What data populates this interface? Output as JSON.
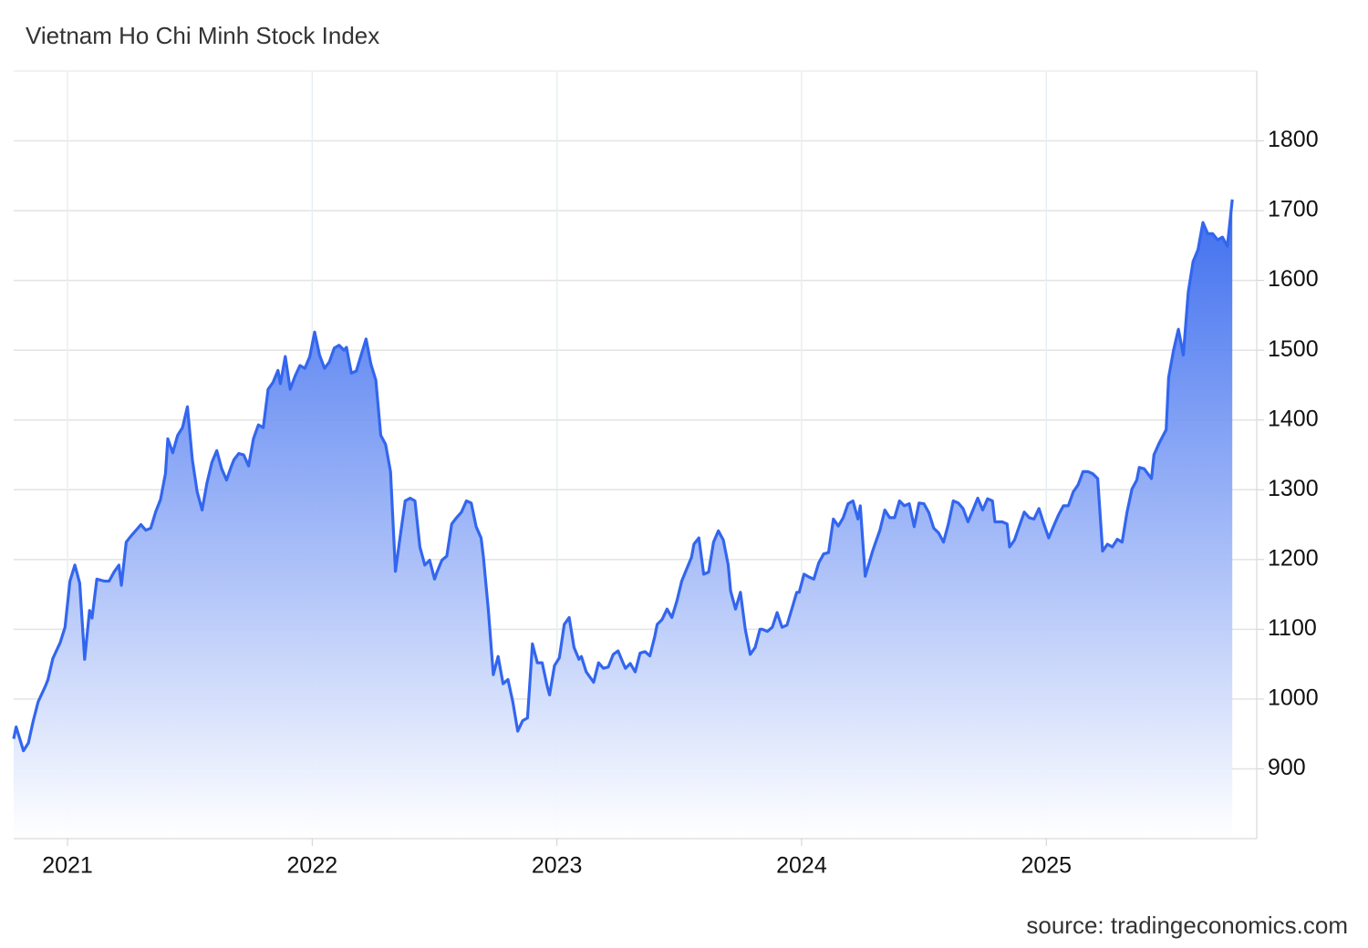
{
  "chart_data": {
    "type": "area",
    "title": "Vietnam Ho Chi Minh Stock Index",
    "source": "source: tradingeconomics.com",
    "color": "#3366ee",
    "grid": true,
    "xlim": [
      2020.78,
      2025.86
    ],
    "xticks": [
      2021,
      2022,
      2023,
      2024,
      2025
    ],
    "ylim": [
      800,
      1900
    ],
    "yticks": [
      900,
      1000,
      1100,
      1200,
      1300,
      1400,
      1500,
      1600,
      1700,
      1800
    ],
    "x": [
      2020.78,
      2020.79,
      2020.82,
      2020.84,
      2020.86,
      2020.88,
      2020.91,
      2020.92,
      2020.94,
      2020.97,
      2020.99,
      2021.01,
      2021.03,
      2021.05,
      2021.07,
      2021.09,
      2021.1,
      2021.12,
      2021.15,
      2021.17,
      2021.19,
      2021.21,
      2021.22,
      2021.24,
      2021.26,
      2021.28,
      2021.3,
      2021.32,
      2021.34,
      2021.36,
      2021.38,
      2021.4,
      2021.41,
      2021.43,
      2021.45,
      2021.47,
      2021.49,
      2021.51,
      2021.53,
      2021.55,
      2021.57,
      2021.59,
      2021.61,
      2021.63,
      2021.65,
      2021.67,
      2021.68,
      2021.7,
      2021.72,
      2021.74,
      2021.76,
      2021.78,
      2021.8,
      2021.82,
      2021.84,
      2021.86,
      2021.87,
      2021.89,
      2021.91,
      2021.93,
      2021.95,
      2021.97,
      2021.99,
      2022.01,
      2022.03,
      2022.05,
      2022.07,
      2022.09,
      2022.11,
      2022.13,
      2022.14,
      2022.16,
      2022.18,
      2022.2,
      2022.22,
      2022.24,
      2022.26,
      2022.28,
      2022.3,
      2022.32,
      2022.34,
      2022.36,
      2022.38,
      2022.4,
      2022.42,
      2022.44,
      2022.46,
      2022.48,
      2022.5,
      2022.51,
      2022.53,
      2022.55,
      2022.57,
      2022.59,
      2022.61,
      2022.63,
      2022.65,
      2022.67,
      2022.69,
      2022.7,
      2022.72,
      2022.74,
      2022.76,
      2022.78,
      2022.8,
      2022.82,
      2022.84,
      2022.86,
      2022.88,
      2022.9,
      2022.92,
      2022.94,
      2022.96,
      2022.97,
      2022.99,
      2023.01,
      2023.03,
      2023.05,
      2023.07,
      2023.09,
      2023.1,
      2023.12,
      2023.15,
      2023.17,
      2023.19,
      2023.21,
      2023.23,
      2023.25,
      2023.27,
      2023.28,
      2023.3,
      2023.32,
      2023.34,
      2023.36,
      2023.38,
      2023.4,
      2023.41,
      2023.43,
      2023.45,
      2023.47,
      2023.49,
      2023.51,
      2023.53,
      2023.55,
      2023.56,
      2023.58,
      2023.6,
      2023.62,
      2023.64,
      2023.66,
      2023.68,
      2023.7,
      2023.71,
      2023.73,
      2023.75,
      2023.77,
      2023.79,
      2023.81,
      2023.83,
      2023.84,
      2023.86,
      2023.88,
      2023.9,
      2023.92,
      2023.94,
      2023.96,
      2023.98,
      2023.99,
      2024.01,
      2024.03,
      2024.05,
      2024.07,
      2024.09,
      2024.11,
      2024.13,
      2024.15,
      2024.17,
      2024.19,
      2024.21,
      2024.23,
      2024.24,
      2024.26,
      2024.29,
      2024.3,
      2024.32,
      2024.34,
      2024.36,
      2024.38,
      2024.4,
      2024.42,
      2024.44,
      2024.46,
      2024.48,
      2024.5,
      2024.52,
      2024.54,
      2024.56,
      2024.58,
      2024.6,
      2024.62,
      2024.64,
      2024.66,
      2024.68,
      2024.7,
      2024.72,
      2024.74,
      2024.76,
      2024.78,
      2024.79,
      2024.82,
      2024.84,
      2024.85,
      2024.87,
      2024.89,
      2024.91,
      2024.93,
      2024.95,
      2024.97,
      2024.99,
      2025.01,
      2025.03,
      2025.05,
      2025.07,
      2025.09,
      2025.11,
      2025.13,
      2025.15,
      2025.17,
      2025.19,
      2025.21,
      2025.23,
      2025.25,
      2025.27,
      2025.29,
      2025.31,
      2025.33,
      2025.35,
      2025.37,
      2025.38,
      2025.4,
      2025.43,
      2025.44,
      2025.46,
      2025.49,
      2025.5,
      2025.52,
      2025.54,
      2025.56,
      2025.58,
      2025.6,
      2025.62,
      2025.64,
      2025.66,
      2025.68,
      2025.7,
      2025.72,
      2025.74,
      2025.76
    ],
    "values": [
      943,
      960,
      926,
      937,
      969,
      996,
      1019,
      1028,
      1058,
      1081,
      1103,
      1169,
      1192,
      1166,
      1057,
      1127,
      1116,
      1172,
      1169,
      1169,
      1182,
      1192,
      1163,
      1225,
      1234,
      1242,
      1250,
      1242,
      1245,
      1268,
      1286,
      1323,
      1373,
      1353,
      1378,
      1389,
      1419,
      1343,
      1297,
      1271,
      1310,
      1339,
      1356,
      1330,
      1314,
      1334,
      1343,
      1352,
      1350,
      1334,
      1373,
      1393,
      1389,
      1444,
      1454,
      1471,
      1452,
      1491,
      1444,
      1463,
      1478,
      1474,
      1491,
      1526,
      1493,
      1474,
      1483,
      1503,
      1507,
      1500,
      1504,
      1467,
      1470,
      1493,
      1516,
      1480,
      1457,
      1378,
      1365,
      1326,
      1183,
      1234,
      1284,
      1288,
      1284,
      1218,
      1192,
      1199,
      1172,
      1182,
      1199,
      1205,
      1251,
      1260,
      1268,
      1284,
      1281,
      1247,
      1231,
      1203,
      1127,
      1035,
      1061,
      1022,
      1028,
      996,
      954,
      969,
      973,
      1079,
      1052,
      1052,
      1019,
      1006,
      1048,
      1059,
      1107,
      1117,
      1074,
      1057,
      1061,
      1039,
      1024,
      1052,
      1044,
      1046,
      1064,
      1069,
      1052,
      1044,
      1051,
      1039,
      1066,
      1068,
      1062,
      1090,
      1107,
      1114,
      1129,
      1117,
      1140,
      1169,
      1186,
      1203,
      1222,
      1231,
      1179,
      1182,
      1225,
      1241,
      1228,
      1192,
      1155,
      1129,
      1153,
      1100,
      1064,
      1074,
      1100,
      1100,
      1097,
      1103,
      1124,
      1103,
      1106,
      1129,
      1153,
      1153,
      1179,
      1175,
      1172,
      1195,
      1208,
      1210,
      1258,
      1248,
      1260,
      1280,
      1284,
      1258,
      1277,
      1176,
      1212,
      1222,
      1242,
      1271,
      1260,
      1260,
      1284,
      1277,
      1280,
      1247,
      1281,
      1280,
      1267,
      1245,
      1238,
      1225,
      1251,
      1284,
      1281,
      1273,
      1254,
      1271,
      1288,
      1271,
      1287,
      1284,
      1254,
      1254,
      1251,
      1218,
      1228,
      1248,
      1268,
      1260,
      1258,
      1273,
      1251,
      1231,
      1248,
      1264,
      1277,
      1277,
      1297,
      1307,
      1326,
      1326,
      1323,
      1316,
      1212,
      1222,
      1218,
      1229,
      1225,
      1268,
      1301,
      1314,
      1332,
      1330,
      1316,
      1350,
      1366,
      1386,
      1461,
      1500,
      1530,
      1493,
      1583,
      1627,
      1644,
      1683,
      1667,
      1667,
      1658,
      1662,
      1649,
      1716
    ]
  }
}
